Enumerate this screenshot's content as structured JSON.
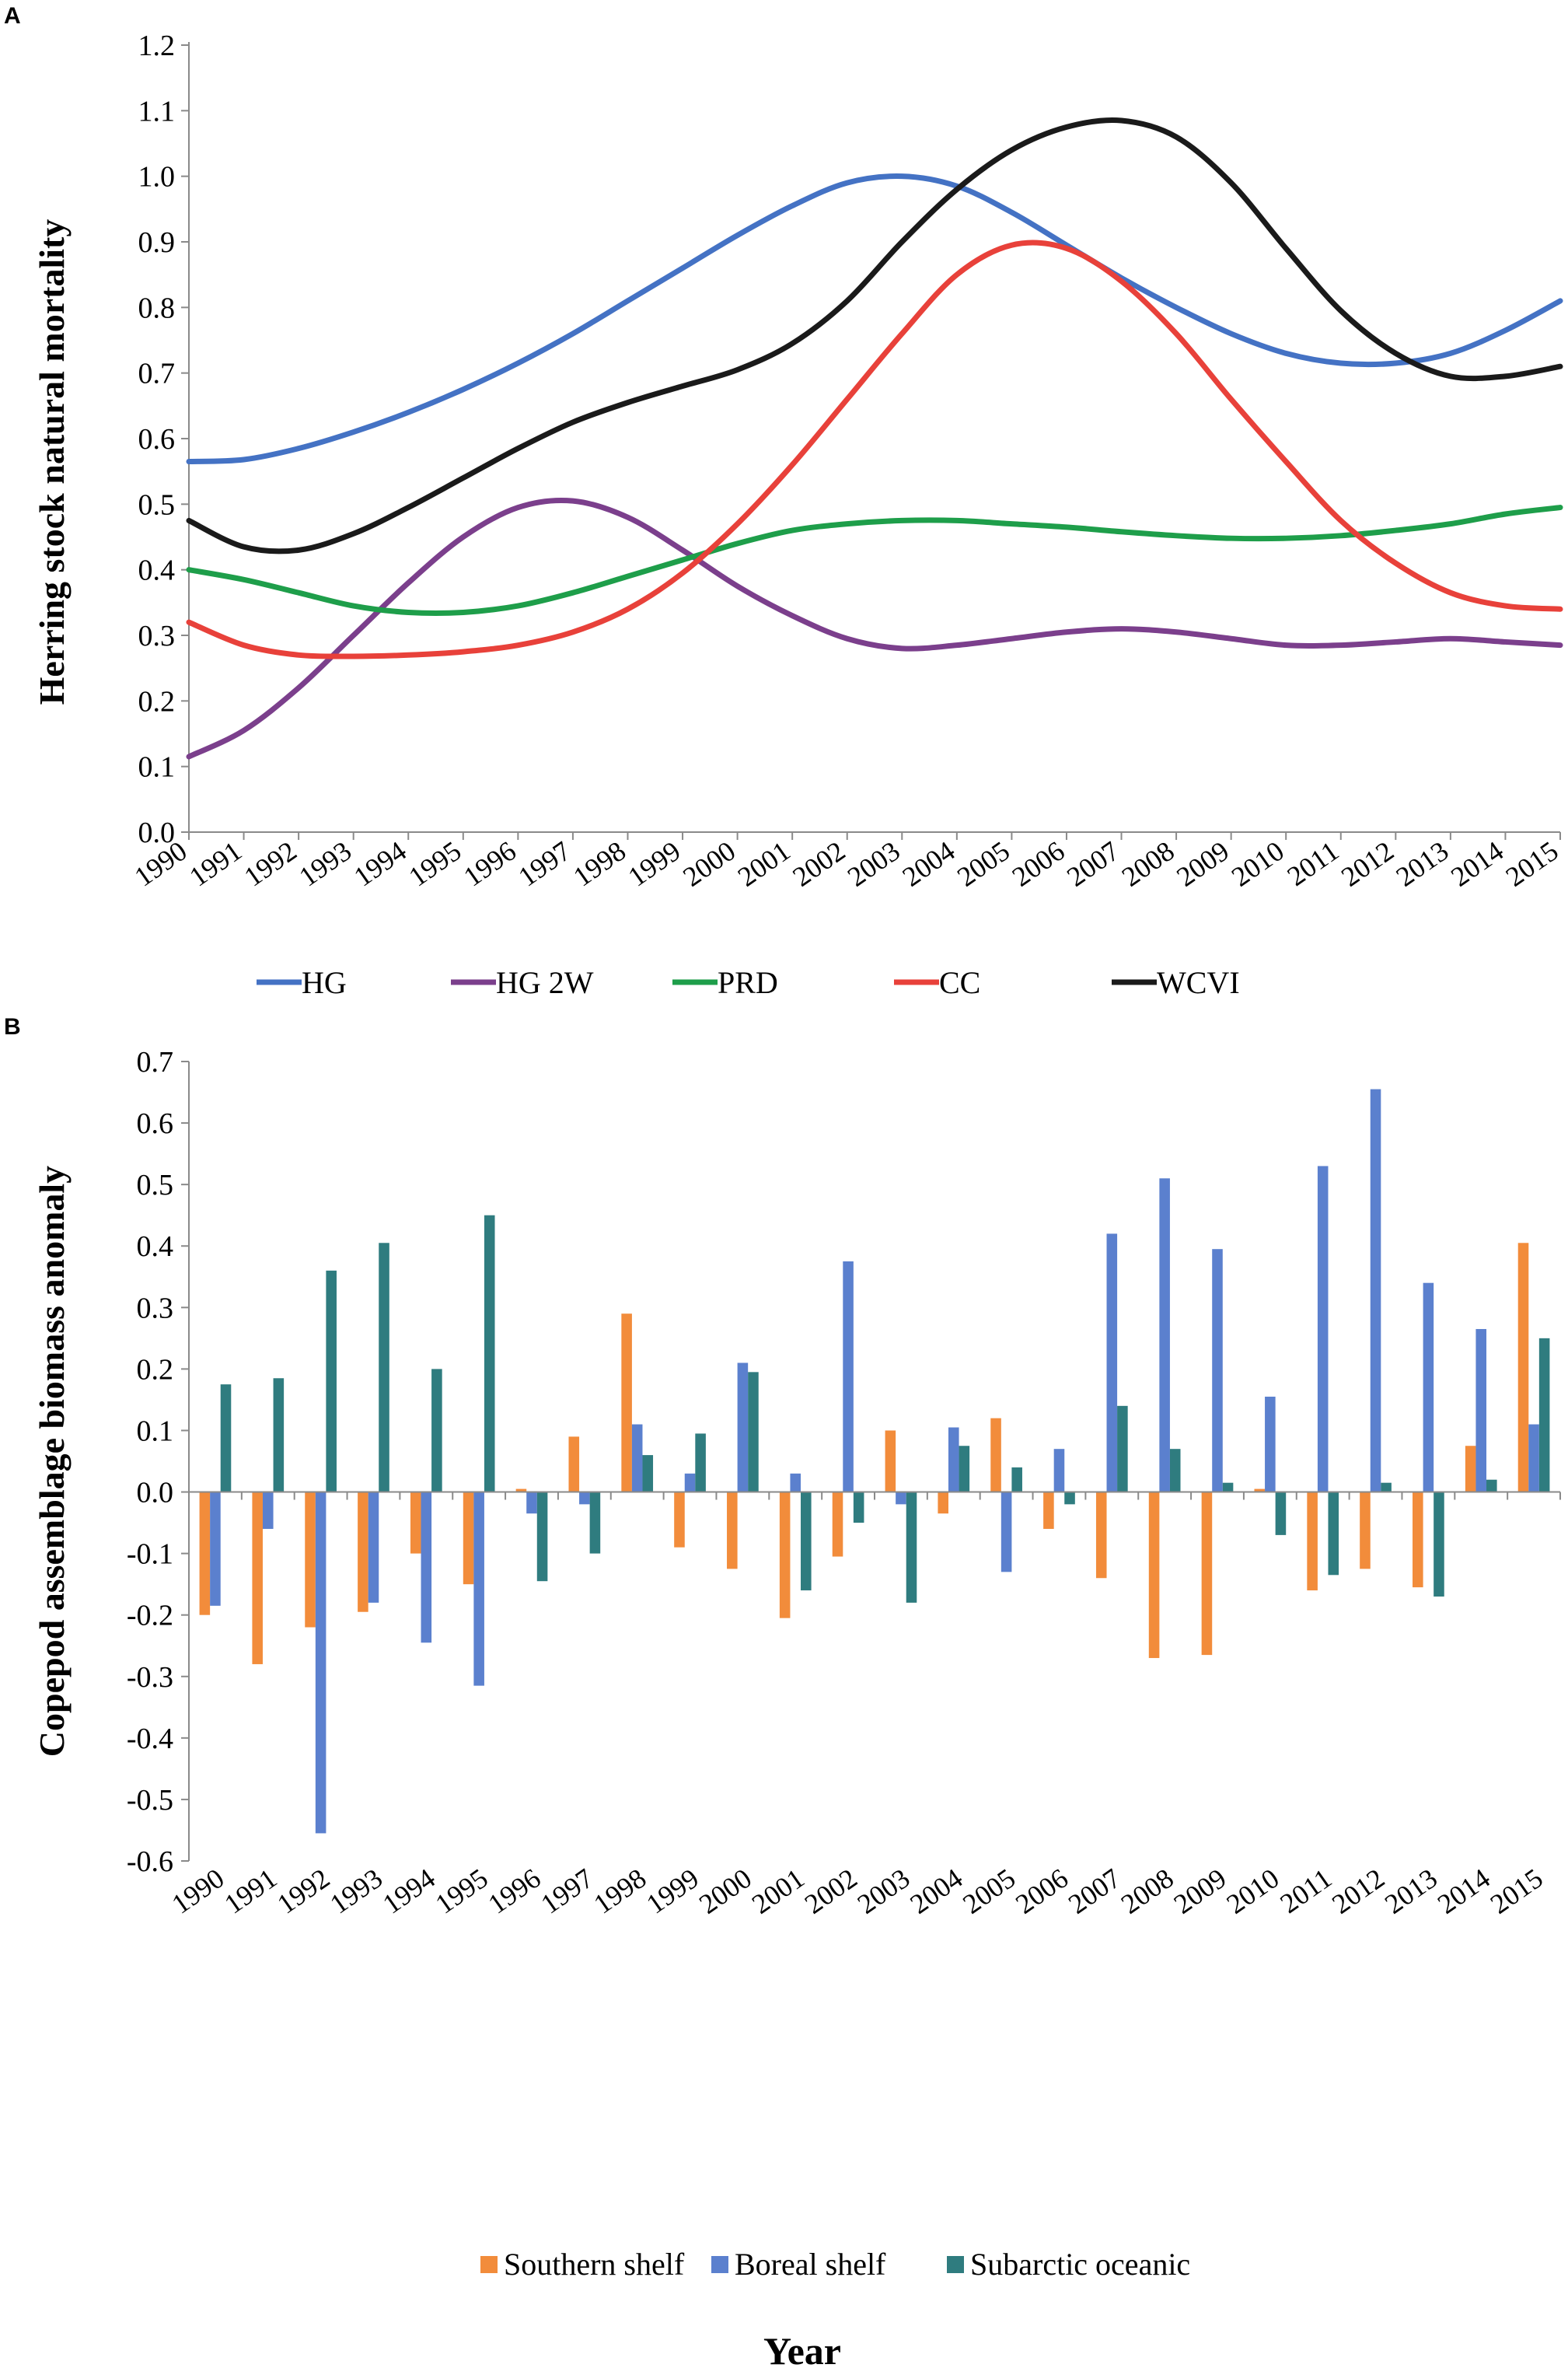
{
  "chart_data": [
    {
      "panel": "A",
      "type": "line",
      "title": "",
      "xlabel": "",
      "ylabel": "Herring stock natural mortality",
      "ylim": [
        0,
        1.2
      ],
      "yticks": [
        "0.0",
        "0.1",
        "0.2",
        "0.3",
        "0.4",
        "0.5",
        "0.6",
        "0.7",
        "0.8",
        "0.9",
        "1.0",
        "1.1",
        "1.2"
      ],
      "x": [
        "1990",
        "1991",
        "1992",
        "1993",
        "1994",
        "1995",
        "1996",
        "1997",
        "1998",
        "1999",
        "2000",
        "2001",
        "2002",
        "2003",
        "2004",
        "2005",
        "2006",
        "2007",
        "2008",
        "2009",
        "2010",
        "2011",
        "2012",
        "2013",
        "2014",
        "2015"
      ],
      "legend_position": "bottom",
      "series": [
        {
          "name": "HG",
          "color": "#4472C4",
          "values": [
            0.565,
            0.568,
            0.585,
            0.61,
            0.64,
            0.675,
            0.715,
            0.76,
            0.81,
            0.86,
            0.91,
            0.955,
            0.99,
            1.0,
            0.985,
            0.945,
            0.895,
            0.845,
            0.8,
            0.76,
            0.73,
            0.715,
            0.715,
            0.73,
            0.765,
            0.81
          ]
        },
        {
          "name": "HG 2W",
          "color": "#7B3F8C",
          "values": [
            0.115,
            0.155,
            0.22,
            0.3,
            0.38,
            0.45,
            0.495,
            0.505,
            0.48,
            0.43,
            0.375,
            0.33,
            0.295,
            0.28,
            0.285,
            0.295,
            0.305,
            0.31,
            0.305,
            0.295,
            0.285,
            0.285,
            0.29,
            0.295,
            0.29,
            0.285
          ]
        },
        {
          "name": "PRD",
          "color": "#1E9E4A",
          "values": [
            0.4,
            0.385,
            0.365,
            0.345,
            0.335,
            0.335,
            0.345,
            0.365,
            0.39,
            0.415,
            0.44,
            0.46,
            0.47,
            0.475,
            0.475,
            0.47,
            0.465,
            0.458,
            0.452,
            0.448,
            0.448,
            0.452,
            0.46,
            0.47,
            0.485,
            0.495
          ]
        },
        {
          "name": "CC",
          "color": "#E8413A",
          "values": [
            0.32,
            0.285,
            0.27,
            0.268,
            0.27,
            0.275,
            0.285,
            0.305,
            0.34,
            0.395,
            0.47,
            0.56,
            0.66,
            0.76,
            0.85,
            0.895,
            0.89,
            0.84,
            0.76,
            0.66,
            0.565,
            0.475,
            0.41,
            0.365,
            0.345,
            0.34
          ]
        },
        {
          "name": "WCVI",
          "color": "#1a1a1a",
          "values": [
            0.475,
            0.435,
            0.43,
            0.455,
            0.495,
            0.54,
            0.585,
            0.625,
            0.655,
            0.68,
            0.705,
            0.745,
            0.81,
            0.9,
            0.98,
            1.04,
            1.075,
            1.085,
            1.06,
            0.99,
            0.89,
            0.795,
            0.73,
            0.695,
            0.695,
            0.71
          ]
        }
      ]
    },
    {
      "panel": "B",
      "type": "bar",
      "title": "",
      "xlabel": "Year",
      "ylabel": "Copepod assemblage biomass anomaly",
      "ylim": [
        -0.6,
        0.7
      ],
      "yticks": [
        "-0.6",
        "-0.5",
        "-0.4",
        "-0.3",
        "-0.2",
        "-0.1",
        "0.0",
        "0.1",
        "0.2",
        "0.3",
        "0.4",
        "0.5",
        "0.6",
        "0.7"
      ],
      "categories": [
        "1990",
        "1991",
        "1992",
        "1993",
        "1994",
        "1995",
        "1996",
        "1997",
        "1998",
        "1999",
        "2000",
        "2001",
        "2002",
        "2003",
        "2004",
        "2005",
        "2006",
        "2007",
        "2008",
        "2009",
        "2010",
        "2011",
        "2012",
        "2013",
        "2014",
        "2015"
      ],
      "legend_position": "bottom",
      "series": [
        {
          "name": "Southern shelf",
          "color": "#F28C3B",
          "values": [
            -0.2,
            -0.28,
            -0.22,
            -0.195,
            -0.1,
            -0.15,
            0.005,
            0.09,
            0.29,
            -0.09,
            -0.125,
            -0.205,
            -0.105,
            0.1,
            -0.035,
            0.12,
            -0.06,
            -0.14,
            -0.27,
            -0.265,
            0.005,
            -0.16,
            -0.125,
            -0.155,
            0.075,
            0.405
          ]
        },
        {
          "name": "Boreal shelf",
          "color": "#5B80CE",
          "values": [
            -0.185,
            -0.06,
            -0.555,
            -0.18,
            -0.245,
            -0.315,
            -0.035,
            -0.02,
            0.11,
            0.03,
            0.21,
            0.03,
            0.375,
            -0.02,
            0.105,
            -0.13,
            0.07,
            0.42,
            0.51,
            0.395,
            0.155,
            0.53,
            0.655,
            0.34,
            0.265,
            0.11
          ]
        },
        {
          "name": "Subarctic oceanic",
          "color": "#2F7C7F",
          "values": [
            0.175,
            0.185,
            0.36,
            0.405,
            0.2,
            0.45,
            -0.145,
            -0.1,
            0.06,
            0.095,
            0.195,
            -0.16,
            -0.05,
            -0.18,
            0.075,
            0.04,
            -0.02,
            0.14,
            0.07,
            0.015,
            -0.07,
            -0.135,
            0.015,
            -0.17,
            0.02,
            0.25
          ]
        }
      ]
    }
  ]
}
